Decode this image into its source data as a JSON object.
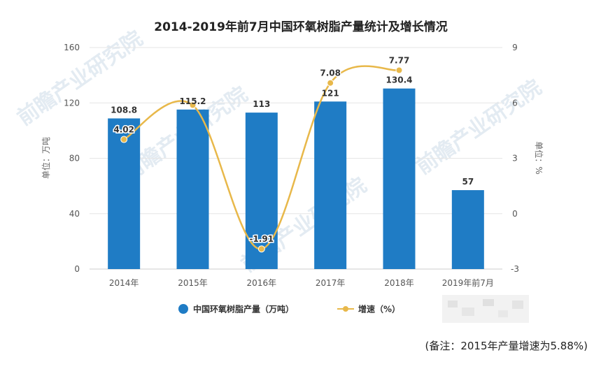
{
  "chart_data": {
    "type": "bar",
    "title": "2014-2019年前7月中国环氧树脂产量统计及增长情况",
    "categories": [
      "2014年",
      "2015年",
      "2016年",
      "2017年",
      "2018年",
      "2019年前7月"
    ],
    "series": [
      {
        "name": "中国环氧树脂产量（万吨）",
        "type": "bar",
        "axis": "left",
        "color": "#1f7cc5",
        "values": [
          108.8,
          115.2,
          113,
          121,
          130.4,
          57
        ],
        "labels": [
          "108.8",
          "115.2",
          "113",
          "121",
          "130.4",
          "57"
        ]
      },
      {
        "name": "增速（%）",
        "type": "line",
        "axis": "right",
        "color": "#e8b84a",
        "values": [
          4.02,
          5.88,
          -1.91,
          7.08,
          7.77,
          null
        ],
        "labels": [
          "4.02",
          "",
          "-1.91",
          "7.08",
          "7.77",
          ""
        ]
      }
    ],
    "y_left": {
      "label": "单位：万吨",
      "lim": [
        0,
        160
      ],
      "ticks": [
        "0",
        "40",
        "80",
        "120",
        "160"
      ]
    },
    "y_right": {
      "label": "单位：%",
      "lim": [
        -3,
        9
      ],
      "ticks": [
        "-3",
        "0",
        "3",
        "6",
        "9"
      ]
    },
    "grid": true,
    "legend": "bottom-center",
    "note": "(备注：2015年产量增速为5.88%)"
  },
  "watermarks": [
    "前瞻产业研究院"
  ]
}
